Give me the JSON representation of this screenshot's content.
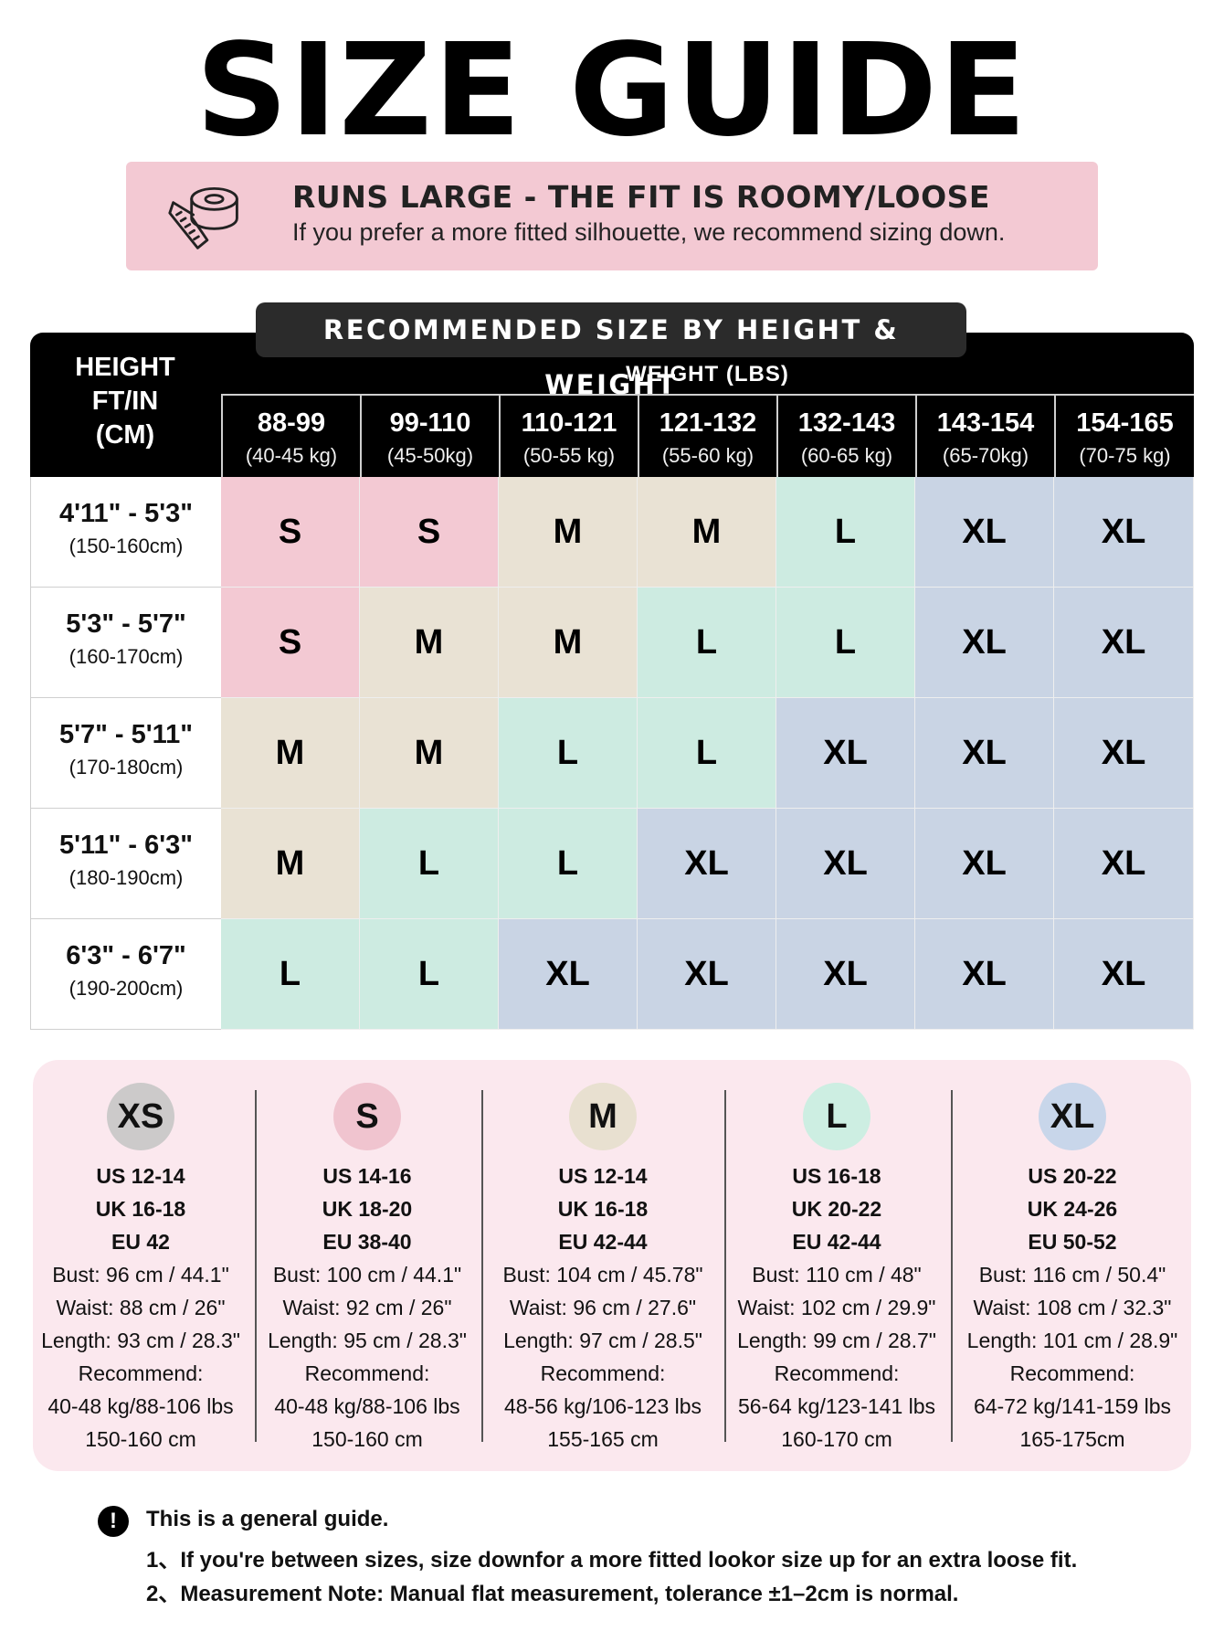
{
  "title": "SIZE GUIDE",
  "banner": {
    "icon": "tape-measure-icon",
    "title": "RUNS LARGE - THE FIT IS ROOMY/LOOSE",
    "subtitle": "If you prefer a more fitted silhouette, we recommend sizing down."
  },
  "table": {
    "heading": "RECOMMENDED SIZE BY HEIGHT & WEIGHT",
    "height_header": [
      "HEIGHT",
      "FT/IN",
      "(CM)"
    ],
    "weight_header": "WEIGHT (LBS)",
    "weights": [
      {
        "lbs": "88-99",
        "kg": "(40-45 kg)"
      },
      {
        "lbs": "99-110",
        "kg": "(45-50kg)"
      },
      {
        "lbs": "110-121",
        "kg": "(50-55 kg)"
      },
      {
        "lbs": "121-132",
        "kg": "(55-60 kg)"
      },
      {
        "lbs": "132-143",
        "kg": "(60-65 kg)"
      },
      {
        "lbs": "143-154",
        "kg": "(65-70kg)"
      },
      {
        "lbs": "154-165",
        "kg": "(70-75 kg)"
      }
    ],
    "rows": [
      {
        "ft": "4'11\" - 5'3\"",
        "cm": "(150-160cm)",
        "sizes": [
          "S",
          "S",
          "M",
          "M",
          "L",
          "XL",
          "XL"
        ]
      },
      {
        "ft": "5'3\" - 5'7\"",
        "cm": "(160-170cm)",
        "sizes": [
          "S",
          "M",
          "M",
          "L",
          "L",
          "XL",
          "XL"
        ]
      },
      {
        "ft": "5'7\" - 5'11\"",
        "cm": "(170-180cm)",
        "sizes": [
          "M",
          "M",
          "L",
          "L",
          "XL",
          "XL",
          "XL"
        ]
      },
      {
        "ft": "5'11\" - 6'3\"",
        "cm": "(180-190cm)",
        "sizes": [
          "M",
          "L",
          "L",
          "XL",
          "XL",
          "XL",
          "XL"
        ]
      },
      {
        "ft": "6'3\" - 6'7\"",
        "cm": "(190-200cm)",
        "sizes": [
          "L",
          "L",
          "XL",
          "XL",
          "XL",
          "XL",
          "XL"
        ]
      }
    ],
    "colors": {
      "S": "#f3c9d3",
      "M": "#e9e2d4",
      "L": "#cdebe1",
      "XL": "#c9d4e4"
    }
  },
  "cards": [
    {
      "size": "XS",
      "badge_color": "#cccaca",
      "us": "US 12-14",
      "uk": "UK 16-18",
      "eu": "EU 42",
      "bust": "Bust: 96 cm / 44.1\"",
      "waist": "Waist: 88 cm / 26\"",
      "length": "Length: 93 cm / 28.3\"",
      "recommend": "Recommend:",
      "weight": "40-48 kg/88-106 lbs",
      "height": "150-160 cm"
    },
    {
      "size": "S",
      "badge_color": "#f0c4cf",
      "us": "US 14-16",
      "uk": "UK 18-20",
      "eu": "EU 38-40",
      "bust": "Bust: 100 cm / 44.1\"",
      "waist": "Waist: 92 cm / 26\"",
      "length": "Length: 95 cm / 28.3\"",
      "recommend": "Recommend:",
      "weight": "40-48 kg/88-106 lbs",
      "height": "150-160 cm"
    },
    {
      "size": "M",
      "badge_color": "#e8e0d0",
      "us": "US 12-14",
      "uk": "UK 16-18",
      "eu": "EU 42-44",
      "bust": "Bust: 104 cm / 45.78\"",
      "waist": "Waist: 96 cm / 27.6\"",
      "length": "Length: 97 cm / 28.5\"",
      "recommend": "Recommend:",
      "weight": "48-56 kg/106-123 lbs",
      "height": "155-165 cm"
    },
    {
      "size": "L",
      "badge_color": "#cdeee2",
      "us": "US 16-18",
      "uk": "UK 20-22",
      "eu": "EU 42-44",
      "bust": "Bust: 110 cm / 48\"",
      "waist": "Waist: 102 cm / 29.9\"",
      "length": "Length: 99 cm / 28.7\"",
      "recommend": "Recommend:",
      "weight": "56-64 kg/123-141 lbs",
      "height": "160-170 cm"
    },
    {
      "size": "XL",
      "badge_color": "#c8d6ea",
      "us": "US 20-22",
      "uk": "UK 24-26",
      "eu": "EU 50-52",
      "bust": "Bust: 116 cm / 50.4\"",
      "waist": "Waist: 108 cm / 32.3\"",
      "length": "Length: 101 cm / 28.9\"",
      "recommend": "Recommend:",
      "weight": "64-72 kg/141-159 lbs",
      "height": "165-175cm"
    }
  ],
  "notes": {
    "icon": "exclamation-icon",
    "icon_glyph": "!",
    "title": "This is a general guide.",
    "items": [
      "1、If you're between sizes, size downfor a more fitted lookor size up for an extra loose fit.",
      "2、Measurement Note: Manual flat measurement, tolerance ±1–2cm is normal."
    ]
  }
}
